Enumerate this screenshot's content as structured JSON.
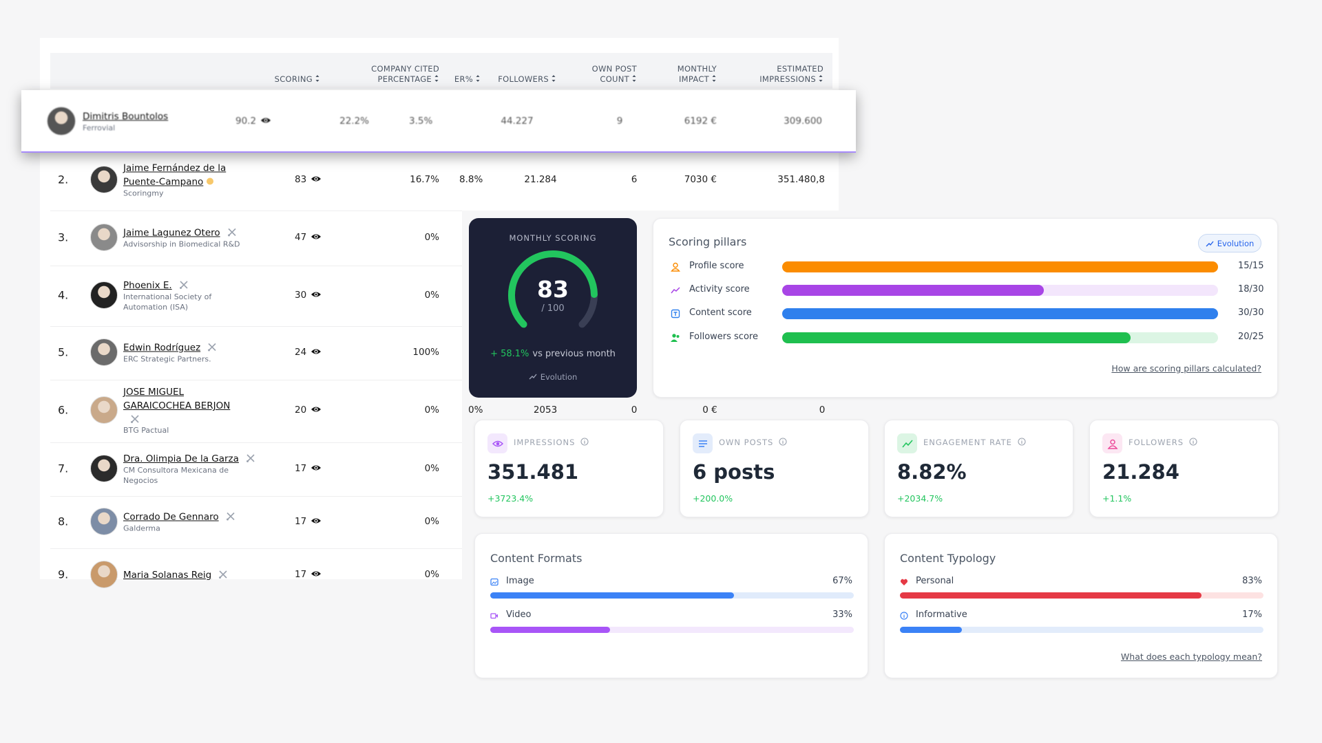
{
  "table": {
    "headers": [
      {
        "lines": [
          "SCORING"
        ]
      },
      {
        "lines": [
          "COMPANY CITED",
          "PERCENTAGE"
        ]
      },
      {
        "lines": [
          "ER%"
        ]
      },
      {
        "lines": [
          "FOLLOWERS"
        ]
      },
      {
        "lines": [
          "OWN POST",
          "COUNT"
        ]
      },
      {
        "lines": [
          "MONTHLY",
          "IMPACT"
        ]
      },
      {
        "lines": [
          "ESTIMATED",
          "IMPRESSIONS"
        ]
      }
    ],
    "top": {
      "name": "Dimitris Bountolos",
      "company": "Ferrovial",
      "scoring": "90.2",
      "cited": "22.2%",
      "er": "3.5%",
      "followers": "44.227",
      "posts": "9",
      "impact": "6192 €",
      "impressions": "309.600"
    },
    "rows": [
      {
        "rank": "2.",
        "name": "Jaime Fernández de la Puente-Campano",
        "company": "Scoringmy",
        "scoring": "83",
        "cited": "16.7%",
        "er": "8.8%",
        "followers": "21.284",
        "posts": "6",
        "impact": "7030 €",
        "impressions": "351.480,8"
      },
      {
        "rank": "3.",
        "name": "Jaime Lagunez Otero",
        "company": "Advisorship in Biomedical R&D",
        "scoring": "47",
        "cited": "0%"
      },
      {
        "rank": "4.",
        "name": "Phoenix E.",
        "company": "International Society of Automation (ISA)",
        "scoring": "30",
        "cited": "0%"
      },
      {
        "rank": "5.",
        "name": "Edwin Rodríguez",
        "company": "ERC Strategic Partners.",
        "scoring": "24",
        "cited": "100%"
      },
      {
        "rank": "6.",
        "name": "JOSE MIGUEL GARAICOCHEA BERJON",
        "company": "BTG Pactual",
        "scoring": "20",
        "cited": "0%",
        "er": "0%",
        "followers": "2053",
        "posts": "0",
        "impact": "0 €",
        "impressions": "0"
      },
      {
        "rank": "7.",
        "name": "Dra. Olimpia De la Garza",
        "company": "CM Consultora Mexicana de Negocios",
        "scoring": "17",
        "cited": "0%"
      },
      {
        "rank": "8.",
        "name": "Corrado De Gennaro",
        "company": "Galderma",
        "scoring": "17",
        "cited": "0%"
      },
      {
        "rank": "9.",
        "name": "Maria Solanas Reig",
        "scoring": "17",
        "cited": "0%"
      }
    ]
  },
  "gauge": {
    "title": "MONTHLY SCORING",
    "score": 83,
    "max": 100,
    "max_label": "/ 100",
    "change": "+ 58.1%",
    "change_text": "vs previous month",
    "link": "Evolution"
  },
  "pillars": {
    "title": "Scoring pillars",
    "button": "Evolution",
    "items": [
      {
        "name": "Profile score",
        "score": 15,
        "max": 15,
        "label": "15/15"
      },
      {
        "name": "Activity score",
        "score": 18,
        "max": 30,
        "label": "18/30"
      },
      {
        "name": "Content score",
        "score": 30,
        "max": 30,
        "label": "30/30"
      },
      {
        "name": "Followers score",
        "score": 20,
        "max": 25,
        "label": "20/25"
      }
    ],
    "link": "How are scoring pillars calculated?"
  },
  "kpis": [
    {
      "label": "IMPRESSIONS",
      "value": "351.481",
      "change": "+3723.4%"
    },
    {
      "label": "OWN POSTS",
      "value": "6 posts",
      "change": "+200.0%"
    },
    {
      "label": "ENGAGEMENT RATE",
      "value": "8.82%",
      "change": "+2034.7%"
    },
    {
      "label": "FOLLOWERS",
      "value": "21.284",
      "change": "+1.1%"
    }
  ],
  "formats": {
    "title": "Content Formats",
    "items": [
      {
        "name": "Image",
        "value": 67,
        "label": "67%"
      },
      {
        "name": "Video",
        "value": 33,
        "label": "33%"
      }
    ]
  },
  "typology": {
    "title": "Content Typology",
    "items": [
      {
        "name": "Personal",
        "value": 83,
        "label": "83%"
      },
      {
        "name": "Informative",
        "value": 17,
        "label": "17%"
      }
    ],
    "link": "What does each typology mean?"
  }
}
